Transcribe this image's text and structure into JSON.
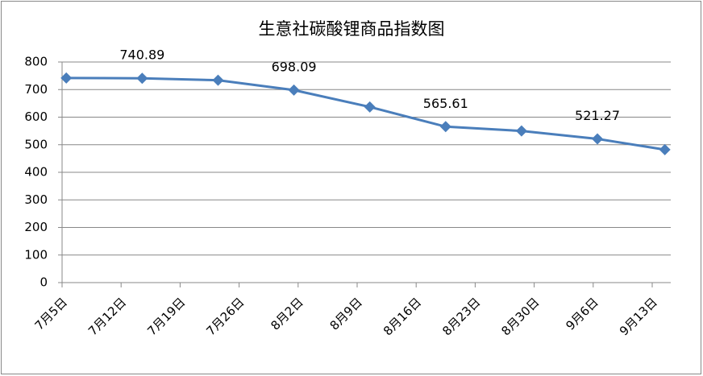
{
  "chart_data": {
    "type": "line",
    "title": "生意社碳酸锂商品指数图",
    "x": [
      0.5,
      9.5,
      18.5,
      27.5,
      36.5,
      45.5,
      54.5,
      63.5,
      71.5
    ],
    "xlim": [
      0,
      72.2
    ],
    "xticks": [
      {
        "value": 0,
        "label": "7月5日"
      },
      {
        "value": 7,
        "label": "7月12日"
      },
      {
        "value": 14,
        "label": "7月19日"
      },
      {
        "value": 21,
        "label": "7月26日"
      },
      {
        "value": 28,
        "label": "8月2日"
      },
      {
        "value": 35,
        "label": "8月9日"
      },
      {
        "value": 42,
        "label": "8月16日"
      },
      {
        "value": 49,
        "label": "8月23日"
      },
      {
        "value": 56,
        "label": "8月30日"
      },
      {
        "value": 63,
        "label": "9月6日"
      },
      {
        "value": 70,
        "label": "9月13日"
      }
    ],
    "series": [
      {
        "color": "#4a7ebb",
        "values": [
          742,
          740.89,
          734,
          698.09,
          637,
          565.61,
          550,
          521.27,
          482
        ],
        "value_labels": [
          null,
          "740.89",
          null,
          "698.09",
          null,
          "565.61",
          null,
          "521.27",
          null
        ]
      }
    ],
    "ylim": [
      0,
      800
    ],
    "yticks": [
      0,
      100,
      200,
      300,
      400,
      500,
      600,
      700,
      800
    ],
    "grid": true
  }
}
